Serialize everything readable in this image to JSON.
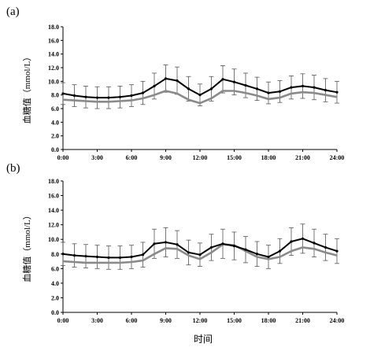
{
  "chart_data": [
    {
      "panel_label": "(a)",
      "type": "line",
      "ylabel": "血糖值（mmol/L）",
      "ylim": [
        0,
        18
      ],
      "yticks": [
        "0.0",
        "2.0",
        "4.0",
        "6.0",
        "8.0",
        "10.0",
        "12.0",
        "14.0",
        "16.0",
        "18.0"
      ],
      "xticks": [
        "0:00",
        "3:00",
        "6:00",
        "9:00",
        "12:00",
        "15:00",
        "18:00",
        "21:00",
        "24:00"
      ],
      "xlim": [
        0,
        24
      ],
      "grid": false,
      "x": [
        0,
        1,
        2,
        3,
        4,
        5,
        6,
        7,
        8,
        9,
        10,
        11,
        12,
        13,
        14,
        15,
        16,
        17,
        18,
        19,
        20,
        21,
        22,
        23,
        24
      ],
      "series": [
        {
          "color": "#000000",
          "values": [
            8.2,
            7.9,
            7.7,
            7.6,
            7.6,
            7.7,
            7.9,
            8.3,
            9.3,
            10.4,
            10.1,
            8.9,
            8.0,
            8.9,
            10.3,
            9.9,
            9.4,
            8.9,
            8.3,
            8.5,
            9.1,
            9.3,
            9.1,
            8.7,
            8.4
          ],
          "errors": [
            1.6,
            1.6,
            1.6,
            1.6,
            1.6,
            1.6,
            1.6,
            1.7,
            1.9,
            2.0,
            2.0,
            1.8,
            1.6,
            1.8,
            2.0,
            1.9,
            1.8,
            1.7,
            1.6,
            1.6,
            1.7,
            1.8,
            1.8,
            1.7,
            1.6
          ]
        },
        {
          "color": "#8a8a8a",
          "values": [
            7.3,
            7.2,
            7.1,
            7.0,
            7.0,
            7.1,
            7.2,
            7.5,
            8.0,
            8.6,
            8.2,
            7.3,
            6.8,
            7.5,
            8.6,
            8.6,
            8.3,
            7.9,
            7.4,
            7.6,
            8.2,
            8.4,
            8.3,
            8.0,
            7.7
          ],
          "errors": []
        }
      ]
    },
    {
      "panel_label": "(b)",
      "type": "line",
      "ylabel": "血糖值（mmol/L）",
      "xlabel": "时间",
      "ylim": [
        0,
        18
      ],
      "yticks": [
        "0.0",
        "2.0",
        "4.0",
        "6.0",
        "8.0",
        "10.0",
        "12.0",
        "14.0",
        "16.0",
        "18.0"
      ],
      "xticks": [
        "0:00",
        "3:00",
        "6:00",
        "9:00",
        "12:00",
        "15:00",
        "18:00",
        "21:00",
        "24:00"
      ],
      "xlim": [
        0,
        24
      ],
      "grid": false,
      "x": [
        0,
        1,
        2,
        3,
        4,
        5,
        6,
        7,
        8,
        9,
        10,
        11,
        12,
        13,
        14,
        15,
        16,
        17,
        18,
        19,
        20,
        21,
        22,
        23,
        24
      ],
      "series": [
        {
          "color": "#000000",
          "values": [
            8.0,
            7.8,
            7.7,
            7.6,
            7.5,
            7.5,
            7.6,
            7.9,
            9.4,
            9.6,
            9.3,
            8.2,
            7.9,
            8.9,
            9.4,
            9.1,
            8.6,
            8.0,
            7.6,
            8.4,
            9.7,
            10.1,
            9.5,
            8.9,
            8.4
          ],
          "errors": [
            1.6,
            1.6,
            1.6,
            1.6,
            1.6,
            1.6,
            1.6,
            1.7,
            2.0,
            2.0,
            1.9,
            1.7,
            1.6,
            1.8,
            2.0,
            1.9,
            1.8,
            1.7,
            1.6,
            1.7,
            1.9,
            2.0,
            1.9,
            1.8,
            1.7
          ]
        },
        {
          "color": "#8a8a8a",
          "values": [
            7.0,
            6.9,
            6.8,
            6.8,
            6.8,
            6.8,
            6.9,
            7.1,
            8.0,
            8.8,
            8.7,
            7.8,
            7.3,
            8.2,
            9.3,
            9.2,
            8.4,
            7.6,
            7.3,
            7.6,
            8.4,
            8.9,
            8.7,
            8.2,
            7.8
          ],
          "errors": []
        }
      ]
    }
  ]
}
